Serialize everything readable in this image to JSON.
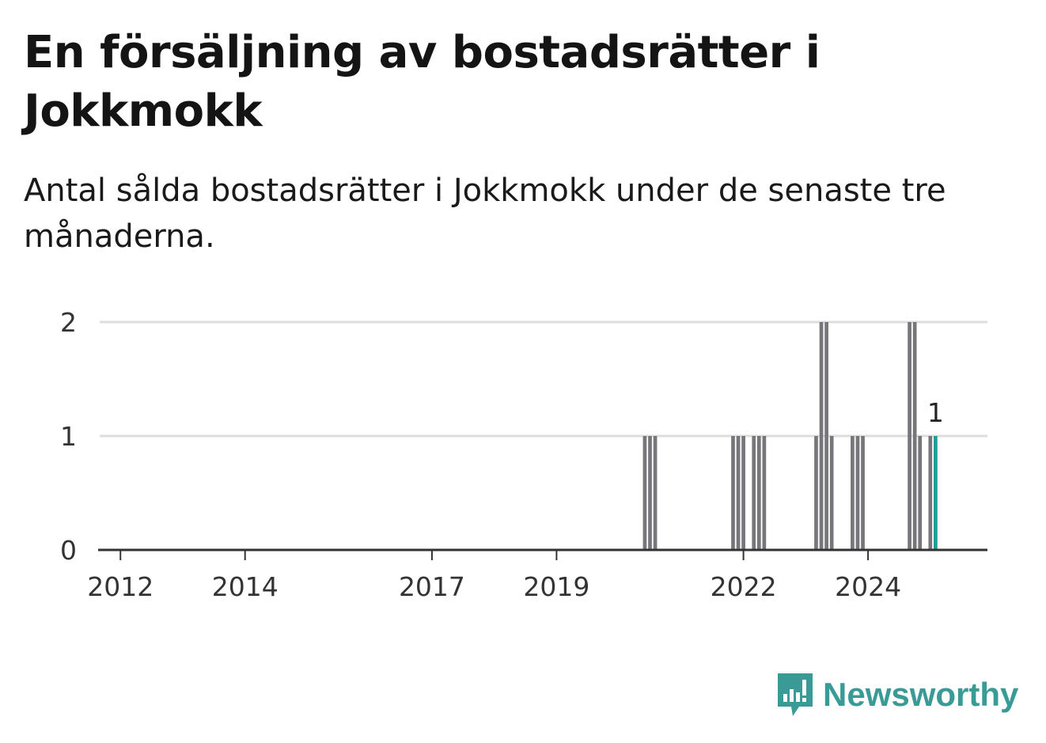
{
  "title": "En försäljning av bostadsrätter i Jokkmokk",
  "subtitle": "Antal sålda bostadsrätter i Jokkmokk under de senaste tre månaderna.",
  "brand": {
    "name": "Newsworthy"
  },
  "colors": {
    "bar": "#77777b",
    "highlight": "#1a9e96",
    "grid": "#dddddd",
    "axis": "#333333",
    "brand": "#3a9a96"
  },
  "chart_data": {
    "type": "bar",
    "title": "En försäljning av bostadsrätter i Jokkmokk",
    "ylim": [
      0,
      2
    ],
    "y_ticks": [
      "0",
      "1",
      "2"
    ],
    "x_range": [
      "2011-09",
      "2025-12"
    ],
    "x_ticks": [
      "2012",
      "2014",
      "2017",
      "2019",
      "2022",
      "2024"
    ],
    "grid": true,
    "periods": [
      "2020-06",
      "2020-07",
      "2020-08",
      "2021-11",
      "2021-12",
      "2022-01",
      "2022-03",
      "2022-04",
      "2022-05",
      "2023-03",
      "2023-04",
      "2023-05",
      "2023-06",
      "2023-10",
      "2023-11",
      "2023-12",
      "2024-09",
      "2024-10",
      "2024-11",
      "2025-01",
      "2025-02"
    ],
    "values": [
      1,
      1,
      1,
      1,
      1,
      1,
      1,
      1,
      1,
      1,
      2,
      2,
      1,
      1,
      1,
      1,
      2,
      2,
      1,
      1,
      1
    ],
    "highlight": {
      "period": "2025-02",
      "value": 1,
      "label": "1"
    }
  }
}
